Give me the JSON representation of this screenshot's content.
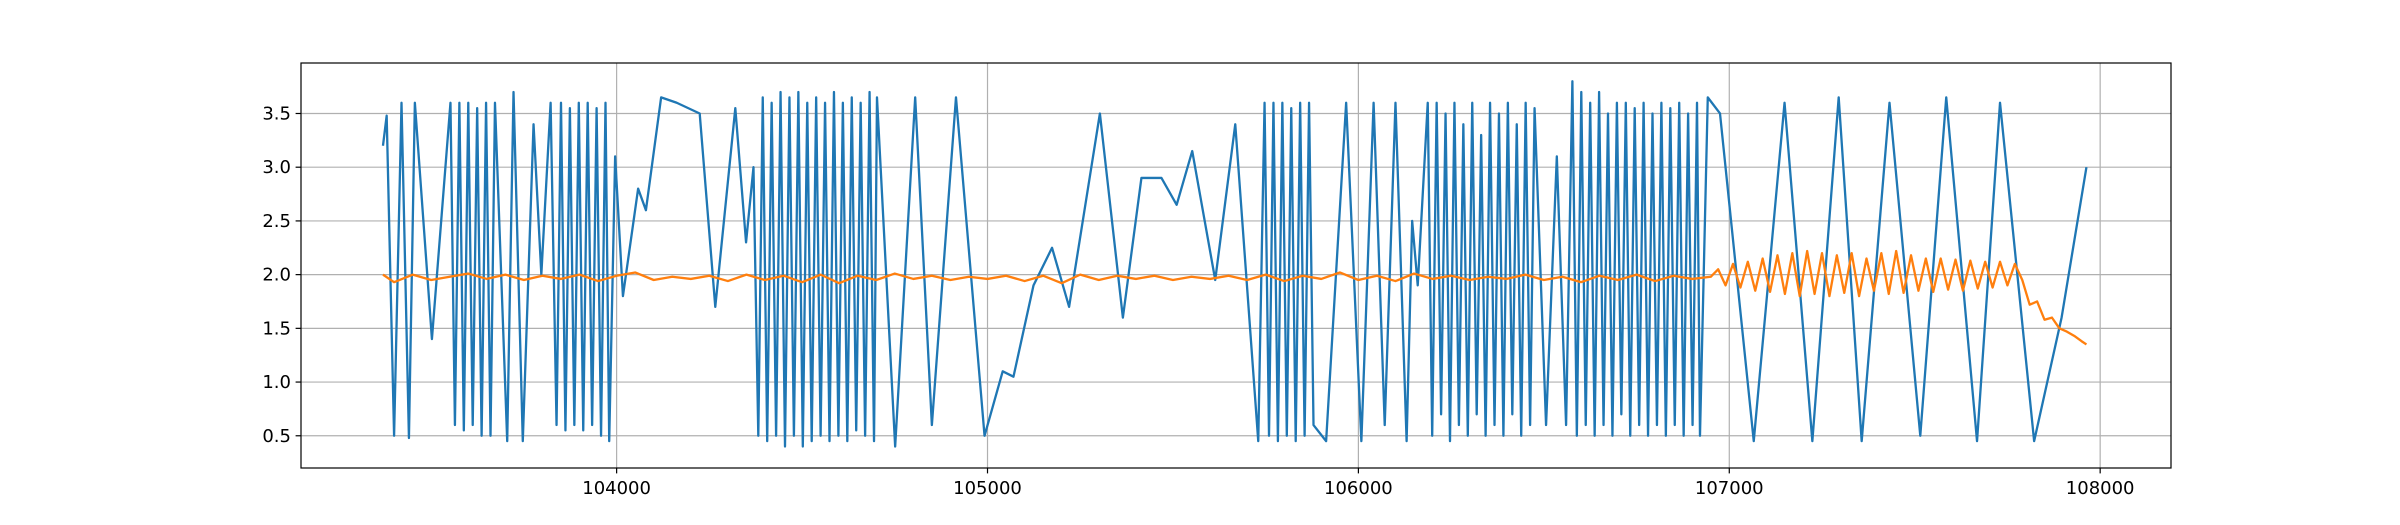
{
  "chart_data": {
    "type": "line",
    "xlim": [
      103149,
      108191
    ],
    "ylim": [
      0.2,
      3.97
    ],
    "xticks": [
      104000,
      105000,
      106000,
      107000,
      108000
    ],
    "yticks": [
      0.5,
      {
        "value": 1,
        "label": "1.0"
      },
      1.5,
      {
        "value": 2,
        "label": "2.0"
      },
      2.5,
      {
        "value": 3,
        "label": "3.0"
      },
      3.5
    ],
    "grid": true,
    "series": [
      {
        "color": "#1f77b4",
        "x": [
          103370,
          103380,
          103400,
          103420,
          103440,
          103456,
          103502,
          103552,
          103564,
          103576,
          103588,
          103600,
          103612,
          103624,
          103636,
          103648,
          103660,
          103672,
          103705,
          103722,
          103747,
          103776,
          103797,
          103822,
          103838,
          103850,
          103862,
          103874,
          103886,
          103898,
          103910,
          103922,
          103934,
          103946,
          103958,
          103970,
          103980,
          103996,
          104017,
          104058,
          104079,
          104120,
          104162,
          104224,
          104266,
          104320,
          104349,
          104369,
          104382,
          104394,
          104406,
          104418,
          104430,
          104442,
          104454,
          104466,
          104478,
          104490,
          104502,
          104514,
          104526,
          104538,
          104550,
          104562,
          104574,
          104586,
          104598,
          104610,
          104622,
          104634,
          104646,
          104658,
          104670,
          104682,
          104694,
          104702,
          104751,
          104805,
          104850,
          104915,
          104992,
          105041,
          105070,
          105124,
          105174,
          105220,
          105303,
          105365,
          105415,
          105469,
          105510,
          105552,
          105614,
          105668,
          105730,
          105747,
          105759,
          105771,
          105783,
          105795,
          105807,
          105819,
          105831,
          105843,
          105855,
          105867,
          105879,
          105913,
          105967,
          106008,
          106041,
          106071,
          106100,
          106130,
          106145,
          106160,
          106187,
          106199,
          106211,
          106223,
          106235,
          106247,
          106259,
          106271,
          106283,
          106295,
          106307,
          106319,
          106331,
          106343,
          106355,
          106367,
          106379,
          106391,
          106403,
          106415,
          106427,
          106439,
          106451,
          106463,
          106475,
          106506,
          106535,
          106560,
          106577,
          106589,
          106601,
          106613,
          106625,
          106637,
          106649,
          106661,
          106673,
          106685,
          106697,
          106709,
          106721,
          106733,
          106745,
          106757,
          106769,
          106781,
          106793,
          106805,
          106817,
          106829,
          106841,
          106853,
          106865,
          106877,
          106889,
          106901,
          106913,
          106921,
          106942,
          106975,
          107066,
          107149,
          107224,
          107295,
          107357,
          107432,
          107515,
          107585,
          107668,
          107730,
          107822,
          107896,
          107963
        ],
        "values": [
          3.2,
          3.48,
          0.5,
          3.6,
          0.48,
          3.6,
          1.4,
          3.6,
          0.6,
          3.6,
          0.55,
          3.6,
          0.6,
          3.55,
          0.5,
          3.6,
          0.5,
          3.6,
          0.45,
          3.7,
          0.45,
          3.4,
          2.0,
          3.6,
          0.6,
          3.6,
          0.55,
          3.55,
          0.6,
          3.6,
          0.55,
          3.6,
          0.6,
          3.55,
          0.5,
          3.6,
          0.45,
          3.1,
          1.8,
          2.8,
          2.6,
          3.65,
          3.6,
          3.5,
          1.7,
          3.55,
          2.3,
          3.0,
          0.5,
          3.65,
          0.45,
          3.6,
          0.5,
          3.7,
          0.4,
          3.65,
          0.5,
          3.7,
          0.4,
          3.6,
          0.45,
          3.65,
          0.5,
          3.6,
          0.45,
          3.7,
          0.5,
          3.6,
          0.45,
          3.65,
          0.55,
          3.6,
          0.5,
          3.7,
          0.45,
          3.65,
          0.4,
          3.65,
          0.6,
          3.65,
          0.5,
          1.1,
          1.05,
          1.9,
          2.25,
          1.7,
          3.5,
          1.6,
          2.9,
          2.9,
          2.65,
          3.15,
          1.95,
          3.4,
          0.45,
          3.6,
          0.5,
          3.6,
          0.45,
          3.6,
          0.5,
          3.55,
          0.45,
          3.6,
          0.5,
          3.6,
          0.6,
          0.45,
          3.6,
          0.45,
          3.6,
          0.6,
          3.6,
          0.45,
          2.5,
          1.9,
          3.6,
          0.5,
          3.6,
          0.7,
          3.5,
          0.45,
          3.6,
          0.6,
          3.4,
          0.5,
          3.6,
          0.7,
          3.3,
          0.5,
          3.6,
          0.6,
          3.5,
          0.5,
          3.6,
          0.7,
          3.4,
          0.5,
          3.6,
          0.6,
          3.55,
          0.6,
          3.1,
          0.6,
          3.8,
          0.5,
          3.7,
          0.6,
          3.6,
          0.5,
          3.7,
          0.6,
          3.5,
          0.5,
          3.6,
          0.7,
          3.6,
          0.5,
          3.55,
          0.6,
          3.6,
          0.5,
          3.5,
          0.6,
          3.6,
          0.5,
          3.55,
          0.6,
          3.6,
          0.5,
          3.5,
          0.6,
          3.6,
          0.5,
          3.65,
          3.5,
          0.45,
          3.6,
          0.45,
          3.65,
          0.45,
          3.6,
          0.5,
          3.65,
          0.45,
          3.6,
          0.45,
          1.6,
          3.0
        ]
      },
      {
        "color": "#ff7f0e",
        "x": [
          103370,
          103400,
          103450,
          103500,
          103550,
          103600,
          103650,
          103700,
          103750,
          103800,
          103850,
          103900,
          103950,
          104000,
          104050,
          104100,
          104150,
          104200,
          104250,
          104300,
          104350,
          104400,
          104450,
          104500,
          104550,
          104600,
          104650,
          104700,
          104750,
          104800,
          104850,
          104900,
          104950,
          105000,
          105050,
          105100,
          105150,
          105200,
          105250,
          105300,
          105350,
          105400,
          105450,
          105500,
          105550,
          105600,
          105650,
          105700,
          105750,
          105800,
          105850,
          105900,
          105950,
          106000,
          106050,
          106100,
          106150,
          106200,
          106250,
          106300,
          106350,
          106400,
          106450,
          106500,
          106550,
          106600,
          106650,
          106700,
          106750,
          106800,
          106850,
          106900,
          106950,
          106970,
          106990,
          107010,
          107030,
          107050,
          107070,
          107090,
          107110,
          107130,
          107150,
          107170,
          107190,
          107210,
          107230,
          107250,
          107270,
          107290,
          107310,
          107330,
          107350,
          107370,
          107390,
          107410,
          107430,
          107450,
          107470,
          107490,
          107510,
          107530,
          107550,
          107570,
          107590,
          107610,
          107630,
          107650,
          107670,
          107690,
          107710,
          107730,
          107750,
          107770,
          107790,
          107810,
          107830,
          107850,
          107870,
          107890,
          107910,
          107930,
          107950,
          107963
        ],
        "values": [
          2.0,
          1.93,
          2.0,
          1.95,
          1.98,
          2.01,
          1.96,
          2.0,
          1.95,
          1.99,
          1.96,
          2.0,
          1.94,
          1.99,
          2.02,
          1.95,
          1.98,
          1.96,
          1.99,
          1.94,
          2.0,
          1.95,
          1.99,
          1.93,
          2.0,
          1.92,
          1.99,
          1.95,
          2.01,
          1.96,
          1.99,
          1.95,
          1.98,
          1.96,
          1.99,
          1.94,
          1.99,
          1.92,
          2.0,
          1.95,
          1.99,
          1.96,
          1.99,
          1.95,
          1.98,
          1.96,
          1.99,
          1.95,
          2.0,
          1.94,
          1.99,
          1.96,
          2.02,
          1.95,
          1.99,
          1.94,
          2.01,
          1.96,
          1.99,
          1.95,
          1.98,
          1.96,
          2.0,
          1.95,
          1.98,
          1.93,
          1.99,
          1.95,
          2.0,
          1.94,
          1.99,
          1.96,
          1.98,
          2.05,
          1.9,
          2.1,
          1.88,
          2.12,
          1.85,
          2.15,
          1.84,
          2.18,
          1.82,
          2.2,
          1.8,
          2.22,
          1.82,
          2.2,
          1.8,
          2.18,
          1.83,
          2.2,
          1.8,
          2.15,
          1.85,
          2.2,
          1.82,
          2.22,
          1.83,
          2.18,
          1.85,
          2.15,
          1.84,
          2.15,
          1.86,
          2.14,
          1.85,
          2.13,
          1.87,
          2.12,
          1.88,
          2.12,
          1.9,
          2.1,
          1.95,
          1.72,
          1.75,
          1.58,
          1.6,
          1.5,
          1.47,
          1.43,
          1.38,
          1.35
        ]
      }
    ]
  }
}
